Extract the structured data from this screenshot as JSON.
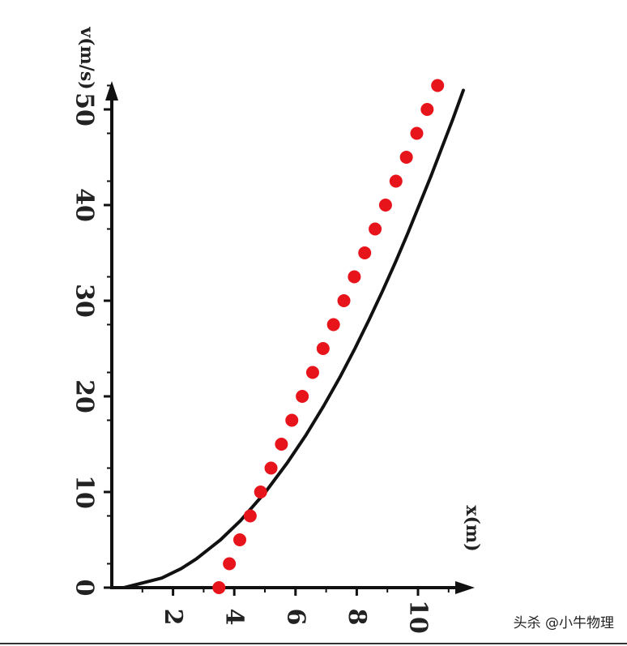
{
  "chart_data": {
    "type": "line",
    "orientation": "rotated-90-clockwise",
    "xlabel": "x(m)",
    "ylabel": "v(m/s)",
    "x_ticks": [
      "0",
      "10",
      "20",
      "30",
      "40",
      "50"
    ],
    "y_ticks": [
      "2",
      "4",
      "6",
      "8",
      "10"
    ],
    "xlim": [
      0,
      53
    ],
    "ylim": [
      0,
      11.5
    ],
    "series": [
      {
        "style": "solid-line",
        "color": "#111111",
        "x": [
          0,
          1,
          2,
          3,
          5,
          7,
          10,
          13,
          16,
          19,
          22,
          25,
          28,
          31,
          34,
          37,
          40,
          43,
          46,
          49,
          52
        ],
        "y": [
          0.4,
          1.63,
          2.27,
          2.76,
          3.55,
          4.2,
          5.02,
          5.72,
          6.35,
          6.92,
          7.45,
          7.94,
          8.4,
          8.84,
          9.26,
          9.66,
          10.04,
          10.42,
          10.78,
          11.14,
          11.48
        ]
      },
      {
        "style": "dots",
        "color": "#e8141b",
        "x": [
          0,
          2.5,
          5,
          7.5,
          10,
          12.5,
          15,
          17.5,
          20,
          22.5,
          25,
          27.5,
          30,
          32.5,
          35,
          37.5,
          40,
          42.5,
          45,
          47.5,
          50,
          52.5
        ],
        "y": [
          3.5,
          3.84,
          4.18,
          4.52,
          4.86,
          5.2,
          5.54,
          5.88,
          6.22,
          6.56,
          6.9,
          7.24,
          7.58,
          7.92,
          8.26,
          8.6,
          8.94,
          9.28,
          9.62,
          9.96,
          10.3,
          10.64
        ]
      }
    ]
  },
  "watermark": "头杀 @小牛物理"
}
